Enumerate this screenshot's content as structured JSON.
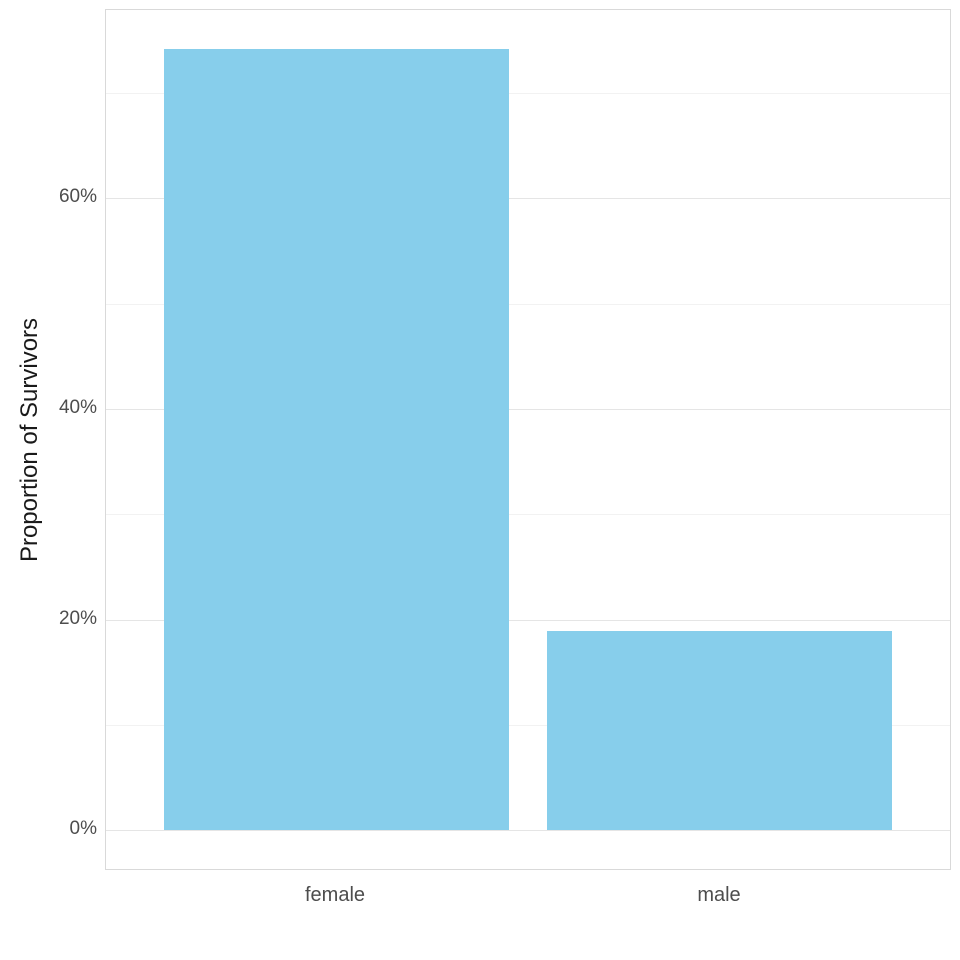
{
  "chart_data": {
    "type": "bar",
    "title": "",
    "xlabel": "",
    "ylabel": "Proportion of Survivors",
    "categories": [
      "female",
      "male"
    ],
    "values": [
      0.742,
      0.189
    ],
    "value_format": "percent",
    "bar_color": "#87CEEB",
    "y_ticks": [
      {
        "value": 0.0,
        "label": "0%"
      },
      {
        "value": 0.2,
        "label": "20%"
      },
      {
        "value": 0.4,
        "label": "40%"
      },
      {
        "value": 0.6,
        "label": "60%"
      }
    ],
    "minor_gridlines": [
      0.1,
      0.3,
      0.5,
      0.7
    ],
    "ylim": [
      -0.037,
      0.779
    ],
    "grid": "major+minor horizontal",
    "legend": "none",
    "panel_background": "#ffffff",
    "major_grid_color": "#e5e5e5",
    "minor_grid_color": "#f2f2f2",
    "axis_text_color": "#4d4d4d",
    "axis_title_color": "#1a1a1a"
  }
}
